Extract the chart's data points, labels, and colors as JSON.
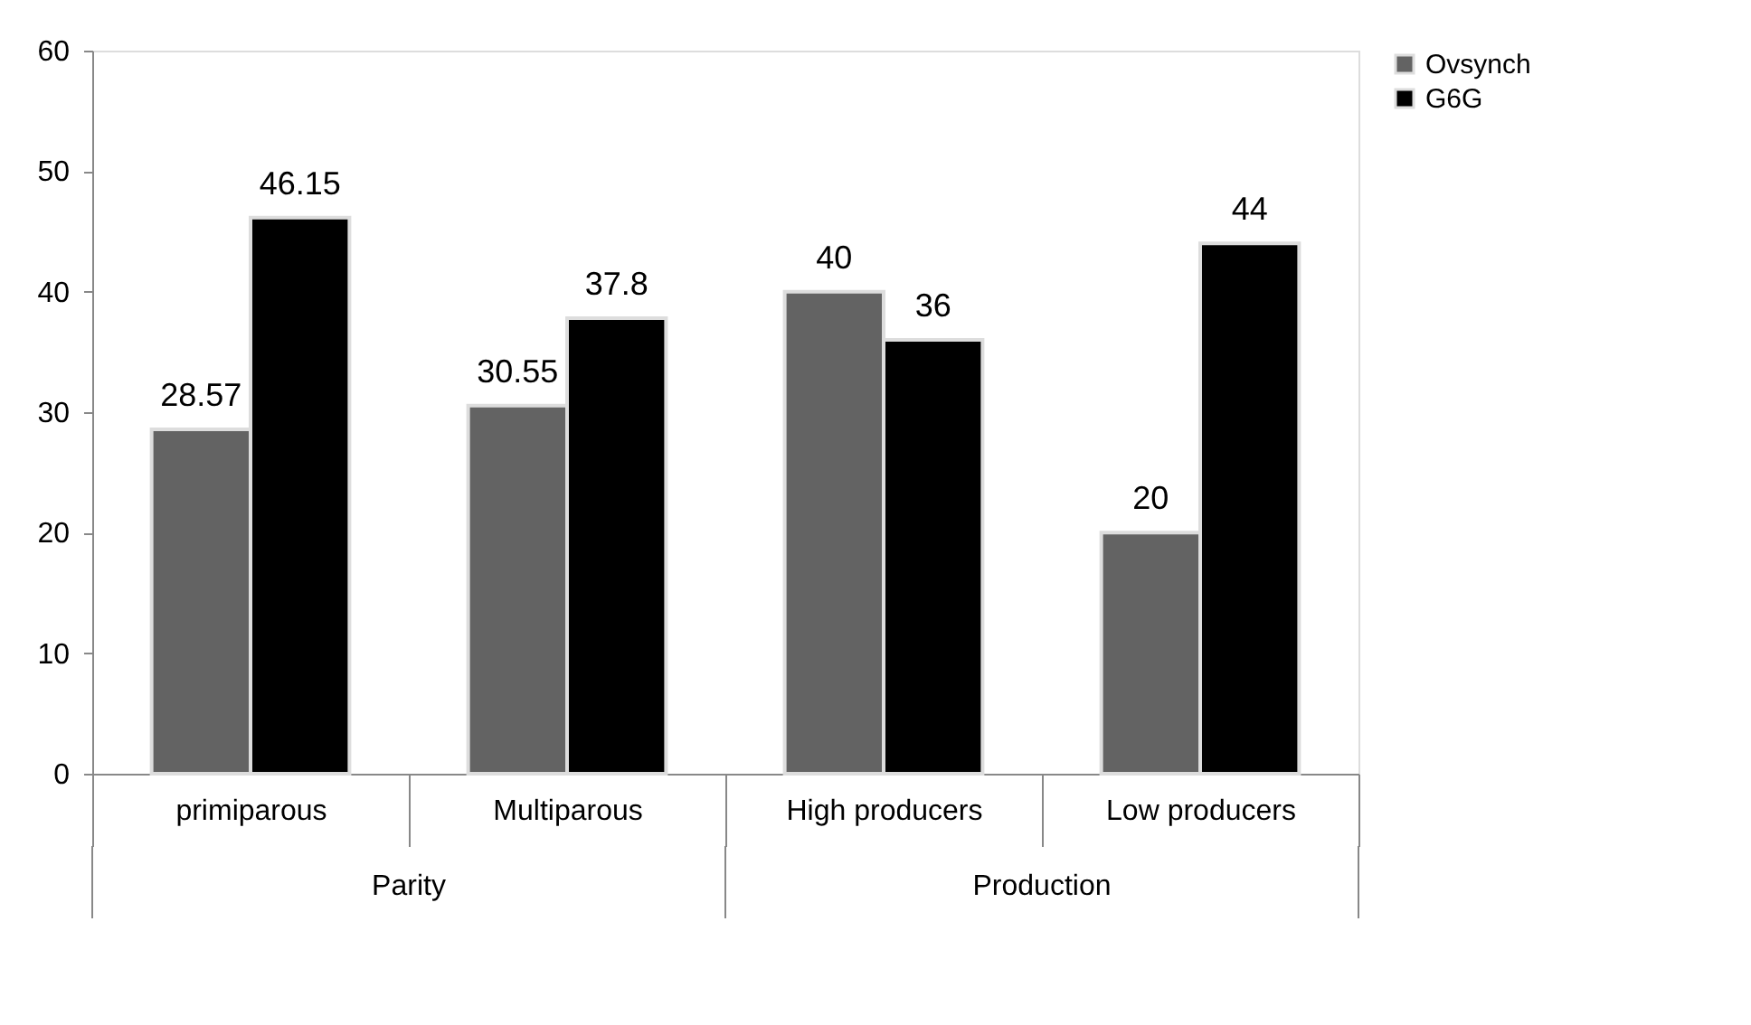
{
  "chart_data": {
    "type": "bar",
    "categories": [
      "primiparous",
      "Multiparous",
      "High producers",
      "Low producers"
    ],
    "series": [
      {
        "name": "Ovsynch",
        "color": "#636363",
        "values": [
          28.57,
          30.55,
          40,
          20
        ],
        "value_labels": [
          "28.57",
          "30.55",
          "40",
          "20"
        ]
      },
      {
        "name": "G6G",
        "color": "#000000",
        "values": [
          46.15,
          37.8,
          36,
          44
        ],
        "value_labels": [
          "46.15",
          "37.8",
          "36",
          "44"
        ]
      }
    ],
    "ylim": [
      0,
      60
    ],
    "yticks": [
      0,
      10,
      20,
      30,
      40,
      50,
      60
    ],
    "grid": false,
    "legend": "right",
    "annotations": [
      "Parity",
      "Production"
    ]
  }
}
